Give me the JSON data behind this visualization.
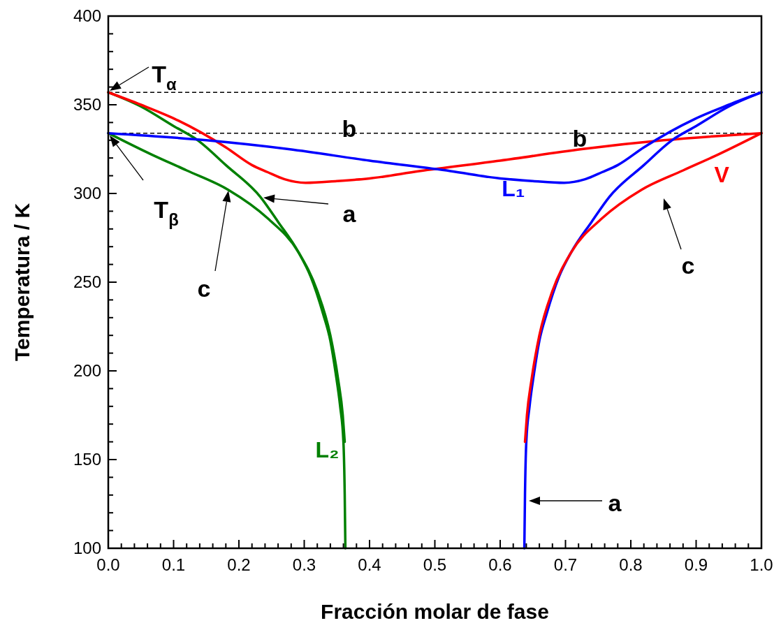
{
  "chart_data": {
    "type": "line",
    "xlabel": "Fracción molar de fase",
    "ylabel": "Temperatura / K",
    "xlim": [
      0,
      1
    ],
    "ylim": [
      100,
      400
    ],
    "xticks": [
      {
        "value": 0,
        "label": "0.0"
      },
      {
        "value": 0.02,
        "label": null
      },
      {
        "value": 0.04,
        "label": null
      },
      {
        "value": 0.06,
        "label": null
      },
      {
        "value": 0.08,
        "label": null
      },
      0.1,
      {
        "value": 0.12,
        "label": null
      },
      {
        "value": 0.14,
        "label": null
      },
      {
        "value": 0.16,
        "label": null
      },
      {
        "value": 0.18,
        "label": null
      },
      0.2,
      {
        "value": 0.22,
        "label": null
      },
      {
        "value": 0.24,
        "label": null
      },
      {
        "value": 0.26,
        "label": null
      },
      {
        "value": 0.28,
        "label": null
      },
      0.3,
      {
        "value": 0.32,
        "label": null
      },
      {
        "value": 0.34,
        "label": null
      },
      {
        "value": 0.36,
        "label": null
      },
      {
        "value": 0.38,
        "label": null
      },
      0.4,
      {
        "value": 0.42,
        "label": null
      },
      {
        "value": 0.44,
        "label": null
      },
      {
        "value": 0.46,
        "label": null
      },
      {
        "value": 0.48,
        "label": null
      },
      0.5,
      {
        "value": 0.52,
        "label": null
      },
      {
        "value": 0.54,
        "label": null
      },
      {
        "value": 0.56,
        "label": null
      },
      {
        "value": 0.58,
        "label": null
      },
      0.6,
      {
        "value": 0.62,
        "label": null
      },
      {
        "value": 0.64,
        "label": null
      },
      {
        "value": 0.66,
        "label": null
      },
      {
        "value": 0.68,
        "label": null
      },
      0.7,
      {
        "value": 0.72,
        "label": null
      },
      {
        "value": 0.74,
        "label": null
      },
      {
        "value": 0.76,
        "label": null
      },
      {
        "value": 0.78,
        "label": null
      },
      0.8,
      {
        "value": 0.82,
        "label": null
      },
      {
        "value": 0.84,
        "label": null
      },
      {
        "value": 0.86,
        "label": null
      },
      {
        "value": 0.88,
        "label": null
      },
      0.9,
      {
        "value": 0.92,
        "label": null
      },
      {
        "value": 0.94,
        "label": null
      },
      {
        "value": 0.96,
        "label": null
      },
      {
        "value": 0.98,
        "label": null
      },
      {
        "value": 1,
        "label": "1.0"
      }
    ],
    "yticks": [
      100,
      {
        "value": 110,
        "label": null
      },
      {
        "value": 120,
        "label": null
      },
      {
        "value": 130,
        "label": null
      },
      {
        "value": 140,
        "label": null
      },
      150,
      {
        "value": 160,
        "label": null
      },
      {
        "value": 170,
        "label": null
      },
      {
        "value": 180,
        "label": null
      },
      {
        "value": 190,
        "label": null
      },
      200,
      {
        "value": 210,
        "label": null
      },
      {
        "value": 220,
        "label": null
      },
      {
        "value": 230,
        "label": null
      },
      {
        "value": 240,
        "label": null
      },
      250,
      {
        "value": 260,
        "label": null
      },
      {
        "value": 270,
        "label": null
      },
      {
        "value": 280,
        "label": null
      },
      {
        "value": 290,
        "label": null
      },
      300,
      {
        "value": 310,
        "label": null
      },
      {
        "value": 320,
        "label": null
      },
      {
        "value": 330,
        "label": null
      },
      {
        "value": 340,
        "label": null
      },
      350,
      {
        "value": 360,
        "label": null
      },
      {
        "value": 370,
        "label": null
      },
      {
        "value": 380,
        "label": null
      },
      {
        "value": 390,
        "label": null
      },
      400
    ],
    "grid": false,
    "marker": "none",
    "line_style": "solid",
    "series": [
      {
        "color": "#008000",
        "x": [
          0,
          0.05,
          0.1,
          0.137,
          0.18,
          0.233,
          0.26,
          0.291,
          0.31,
          0.329,
          0.34,
          0.348,
          0.355,
          0.36,
          0.362,
          0.363
        ],
        "values": [
          357,
          349,
          338,
          330,
          316,
          298,
          284,
          267,
          253,
          232,
          217,
          199,
          180,
          160,
          130,
          100
        ]
      },
      {
        "name": "L₂",
        "color": "#008000",
        "x": [
          0,
          0.066,
          0.12,
          0.184,
          0.244,
          0.291,
          0.32,
          0.34,
          0.352,
          0.359,
          0.362
        ],
        "values": [
          334,
          322,
          313,
          302,
          286,
          267,
          245,
          220,
          195,
          175,
          160
        ]
      },
      {
        "color": "#ff0000",
        "x": [
          0,
          0.05,
          0.102,
          0.18,
          0.22,
          0.244,
          0.27,
          0.302,
          0.35,
          0.4,
          0.476,
          0.6,
          0.725,
          0.85,
          1
        ],
        "values": [
          357,
          350,
          342,
          326,
          316,
          312,
          308,
          306,
          307,
          308.5,
          312.6,
          318.5,
          325,
          330,
          334
        ]
      },
      {
        "name": "L₁",
        "color": "#0000ff",
        "x": [
          0,
          0.15,
          0.276,
          0.4,
          0.524,
          0.6,
          0.65,
          0.698,
          0.73,
          0.756,
          0.78,
          0.82,
          0.898,
          0.95,
          1
        ],
        "values": [
          334,
          330,
          325,
          318.5,
          312.6,
          308.5,
          307,
          306,
          308,
          312,
          316,
          326,
          342,
          350,
          357
        ]
      },
      {
        "color": "#0000ff",
        "x": [
          0.637,
          0.638,
          0.64,
          0.645,
          0.652,
          0.66,
          0.671,
          0.69,
          0.709,
          0.74,
          0.767,
          0.82,
          0.863,
          0.9,
          0.95,
          1
        ],
        "values": [
          100,
          130,
          160,
          180,
          199,
          217,
          232,
          253,
          267,
          284,
          298,
          316,
          330,
          338,
          349,
          357
        ]
      },
      {
        "name": "V",
        "color": "#ff0000",
        "x": [
          0.638,
          0.641,
          0.648,
          0.66,
          0.68,
          0.709,
          0.756,
          0.816,
          0.88,
          0.934,
          1
        ],
        "values": [
          160,
          175,
          195,
          220,
          245,
          267,
          286,
          302,
          313,
          322,
          334
        ]
      }
    ],
    "ref_lines": [
      {
        "axis": "y",
        "value": 357,
        "color": "#000000",
        "line_style": "dashed"
      },
      {
        "axis": "y",
        "value": 334,
        "color": "#000000",
        "line_style": "dashed"
      }
    ],
    "annotations": [
      "T$_{α}$",
      "T$_{β}$",
      "a",
      "c",
      "b",
      "b",
      "c",
      "a"
    ]
  }
}
